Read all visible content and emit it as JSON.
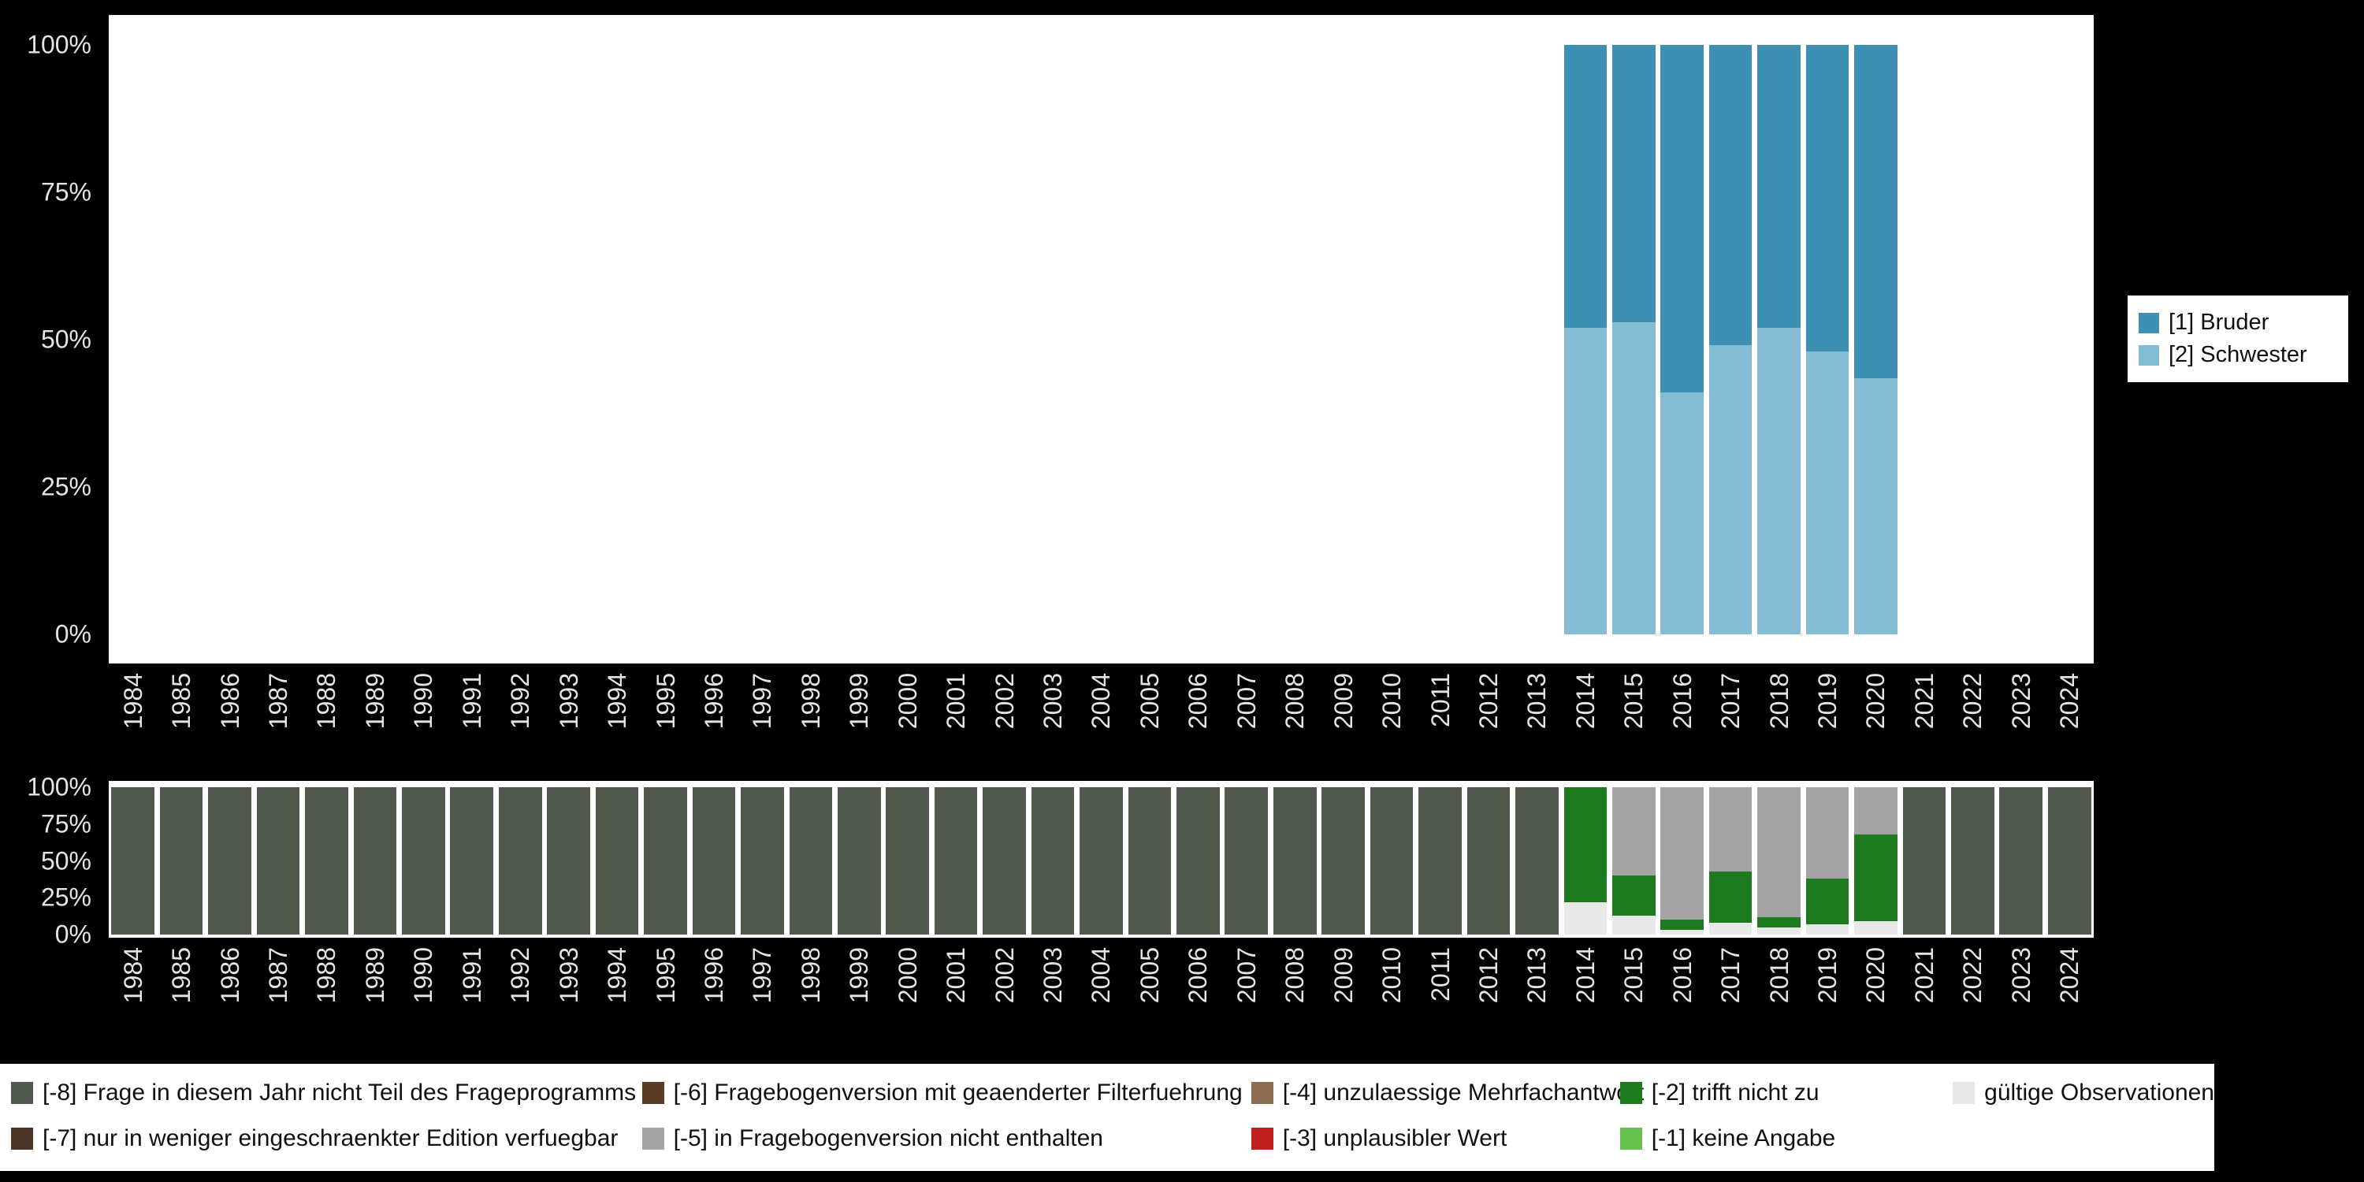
{
  "colors": {
    "background": "#000000",
    "plot_bg": "#ffffff",
    "axis_text": "#e4e4e4",
    "bruder": "#3e90b2",
    "schwester": "#83bcd3",
    "m8": "#51594f",
    "m7": "#4a3526",
    "m6": "#5a3c22",
    "m5": "#a4a4a4",
    "m4": "#8c6c50",
    "m3": "#c01f1f",
    "m2": "#1d7a1f",
    "m1": "#66c04d",
    "valid": "#e8e8e8"
  },
  "chart_data": [
    {
      "type": "bar",
      "stacked": true,
      "title": "",
      "xlabel": "",
      "ylabel": "",
      "ylim": [
        0,
        100
      ],
      "yticks": [
        "0%",
        "25%",
        "50%",
        "75%",
        "100%"
      ],
      "grid": false,
      "legend_position": "right",
      "categories": [
        "1984",
        "1985",
        "1986",
        "1987",
        "1988",
        "1989",
        "1990",
        "1991",
        "1992",
        "1993",
        "1994",
        "1995",
        "1996",
        "1997",
        "1998",
        "1999",
        "2000",
        "2001",
        "2002",
        "2003",
        "2004",
        "2005",
        "2006",
        "2007",
        "2008",
        "2009",
        "2010",
        "2011",
        "2012",
        "2013",
        "2014",
        "2015",
        "2016",
        "2017",
        "2018",
        "2019",
        "2020",
        "2021",
        "2022",
        "2023",
        "2024"
      ],
      "series": [
        {
          "name": "[2] Schwester",
          "color_key": "schwester",
          "values": [
            0,
            0,
            0,
            0,
            0,
            0,
            0,
            0,
            0,
            0,
            0,
            0,
            0,
            0,
            0,
            0,
            0,
            0,
            0,
            0,
            0,
            0,
            0,
            0,
            0,
            0,
            0,
            0,
            0,
            0,
            52,
            53,
            41,
            49,
            52,
            48,
            43.5,
            0,
            0,
            0,
            0
          ]
        },
        {
          "name": "[1] Bruder",
          "color_key": "bruder",
          "values": [
            0,
            0,
            0,
            0,
            0,
            0,
            0,
            0,
            0,
            0,
            0,
            0,
            0,
            0,
            0,
            0,
            0,
            0,
            0,
            0,
            0,
            0,
            0,
            0,
            0,
            0,
            0,
            0,
            0,
            0,
            48,
            47,
            59,
            51,
            48,
            52,
            56.5,
            0,
            0,
            0,
            0
          ]
        }
      ],
      "legend": [
        {
          "label": "[1] Bruder",
          "color_key": "bruder"
        },
        {
          "label": "[2] Schwester",
          "color_key": "schwester"
        }
      ]
    },
    {
      "type": "bar",
      "stacked": true,
      "title": "",
      "xlabel": "",
      "ylabel": "",
      "ylim": [
        0,
        100
      ],
      "yticks": [
        "0%",
        "25%",
        "50%",
        "75%",
        "100%"
      ],
      "grid": false,
      "legend_position": "bottom",
      "categories": [
        "1984",
        "1985",
        "1986",
        "1987",
        "1988",
        "1989",
        "1990",
        "1991",
        "1992",
        "1993",
        "1994",
        "1995",
        "1996",
        "1997",
        "1998",
        "1999",
        "2000",
        "2001",
        "2002",
        "2003",
        "2004",
        "2005",
        "2006",
        "2007",
        "2008",
        "2009",
        "2010",
        "2011",
        "2012",
        "2013",
        "2014",
        "2015",
        "2016",
        "2017",
        "2018",
        "2019",
        "2020",
        "2021",
        "2022",
        "2023",
        "2024"
      ],
      "series": [
        {
          "name": "gültige Observationen",
          "color_key": "valid",
          "values": [
            0,
            0,
            0,
            0,
            0,
            0,
            0,
            0,
            0,
            0,
            0,
            0,
            0,
            0,
            0,
            0,
            0,
            0,
            0,
            0,
            0,
            0,
            0,
            0,
            0,
            0,
            0,
            0,
            0,
            0,
            22,
            13,
            3,
            8,
            5,
            7,
            9,
            0,
            0,
            0,
            0
          ]
        },
        {
          "name": "[-2] trifft nicht zu",
          "color_key": "m2",
          "values": [
            0,
            0,
            0,
            0,
            0,
            0,
            0,
            0,
            0,
            0,
            0,
            0,
            0,
            0,
            0,
            0,
            0,
            0,
            0,
            0,
            0,
            0,
            0,
            0,
            0,
            0,
            0,
            0,
            0,
            0,
            78,
            27,
            7,
            35,
            7,
            31,
            59,
            0,
            0,
            0,
            0
          ]
        },
        {
          "name": "[-5] in Fragebogenversion nicht enthalten",
          "color_key": "m5",
          "values": [
            0,
            0,
            0,
            0,
            0,
            0,
            0,
            0,
            0,
            0,
            0,
            0,
            0,
            0,
            0,
            0,
            0,
            0,
            0,
            0,
            0,
            0,
            0,
            0,
            0,
            0,
            0,
            0,
            0,
            0,
            0,
            60,
            90,
            57,
            88,
            62,
            32,
            0,
            0,
            0,
            0
          ]
        },
        {
          "name": "[-8] Frage in diesem Jahr nicht Teil des Frageprogramms",
          "color_key": "m8",
          "values": [
            100,
            100,
            100,
            100,
            100,
            100,
            100,
            100,
            100,
            100,
            100,
            100,
            100,
            100,
            100,
            100,
            100,
            100,
            100,
            100,
            100,
            100,
            100,
            100,
            100,
            100,
            100,
            100,
            100,
            100,
            0,
            0,
            0,
            0,
            0,
            0,
            0,
            100,
            100,
            100,
            100
          ]
        }
      ]
    }
  ],
  "legend_bottom": {
    "columns": [
      {
        "items": [
          {
            "label": "[-8] Frage in diesem Jahr nicht Teil des Frageprogramms",
            "color_key": "m8"
          },
          {
            "label": "[-7] nur in weniger eingeschraenkter Edition verfuegbar",
            "color_key": "m7"
          }
        ]
      },
      {
        "items": [
          {
            "label": "[-6] Fragebogenversion mit geaenderter Filterfuehrung",
            "color_key": "m6"
          },
          {
            "label": "[-5] in Fragebogenversion nicht enthalten",
            "color_key": "m5"
          }
        ]
      },
      {
        "items": [
          {
            "label": "[-4] unzulaessige Mehrfachantwort",
            "color_key": "m4"
          },
          {
            "label": "[-3] unplausibler Wert",
            "color_key": "m3"
          }
        ]
      },
      {
        "items": [
          {
            "label": "[-2] trifft nicht zu",
            "color_key": "m2"
          },
          {
            "label": "[-1] keine Angabe",
            "color_key": "m1"
          }
        ]
      },
      {
        "items": [
          {
            "label": "gültige Observationen",
            "color_key": "valid"
          }
        ]
      }
    ]
  }
}
